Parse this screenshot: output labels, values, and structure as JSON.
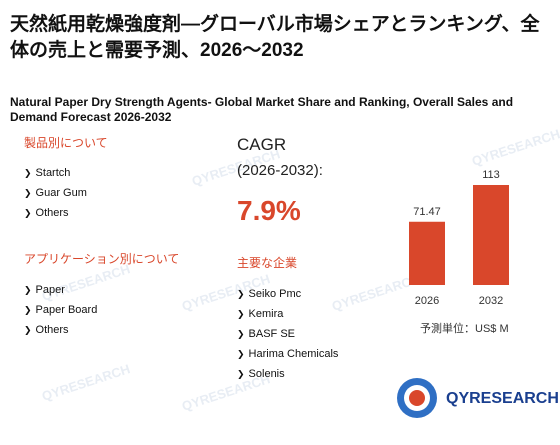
{
  "title_jp": "天然紙用乾燥強度剤―グローバル市場シェアとランキング、全体の売上と需要予測、2026～2032",
  "title_en": "Natural Paper Dry Strength Agents- Global Market Share and Ranking, Overall Sales and Demand Forecast 2026-2032",
  "product_section": {
    "heading": "製品別について",
    "items": [
      "Startch",
      "Guar Gum",
      "Others"
    ]
  },
  "application_section": {
    "heading": "アプリケーション別について",
    "items": [
      "Paper",
      "Paper Board",
      "Others"
    ]
  },
  "cagr": {
    "label": "CAGR",
    "range": "(2026-2032):",
    "value": "7.9%"
  },
  "companies_section": {
    "heading": "主要な企業",
    "items": [
      "Seiko Pmc",
      "Kemira",
      "BASF SE",
      "Harima Chemicals",
      "Solenis"
    ]
  },
  "unit_label": "予測単位：US$ M",
  "logo": {
    "text": "QYRESEARCH"
  },
  "watermark_text": "QYRESEARCH",
  "colors": {
    "accent": "#d9472b",
    "brand_blue": "#1a3f8f"
  },
  "chart_data": {
    "type": "bar",
    "categories": [
      "2026",
      "2032"
    ],
    "values": [
      71.47,
      113
    ],
    "data_labels": [
      "71.47",
      "113"
    ],
    "ylim": [
      0,
      113
    ]
  }
}
